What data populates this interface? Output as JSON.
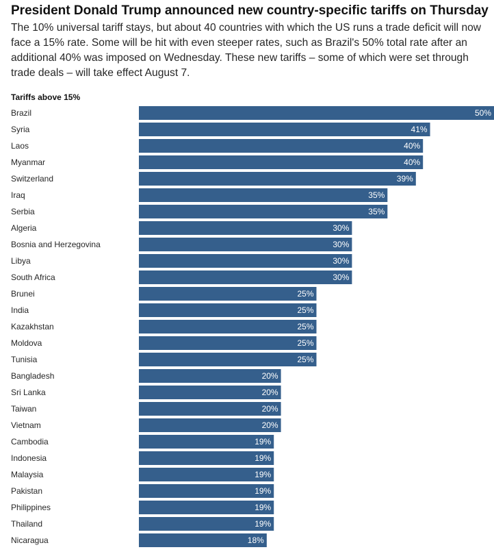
{
  "header": {
    "title": "President Donald Trump announced new country-specific tariffs on Thursday",
    "subtitle": "The 10% universal tariff stays, but about 40 countries with which the US runs a trade deficit will now face a 15% rate. Some will be hit with even steeper rates, such as Brazil's 50% total rate after an additional 40% was imposed on Wednesday. These new tariffs – some of which were set through trade deals – will take effect August 7."
  },
  "chart_data": {
    "type": "bar",
    "orientation": "horizontal",
    "title": "Tariffs above 15%",
    "xlabel": "",
    "ylabel": "",
    "xlim": [
      0,
      50
    ],
    "grid": false,
    "legend": "none",
    "value_suffix": "%",
    "bar_color": "#355f8c",
    "categories": [
      "Brazil",
      "Syria",
      "Laos",
      "Myanmar",
      "Switzerland",
      "Iraq",
      "Serbia",
      "Algeria",
      "Bosnia and Herzegovina",
      "Libya",
      "South Africa",
      "Brunei",
      "India",
      "Kazakhstan",
      "Moldova",
      "Tunisia",
      "Bangladesh",
      "Sri Lanka",
      "Taiwan",
      "Vietnam",
      "Cambodia",
      "Indonesia",
      "Malaysia",
      "Pakistan",
      "Philippines",
      "Thailand",
      "Nicaragua"
    ],
    "values": [
      50,
      41,
      40,
      40,
      39,
      35,
      35,
      30,
      30,
      30,
      30,
      25,
      25,
      25,
      25,
      25,
      20,
      20,
      20,
      20,
      19,
      19,
      19,
      19,
      19,
      19,
      18
    ]
  }
}
